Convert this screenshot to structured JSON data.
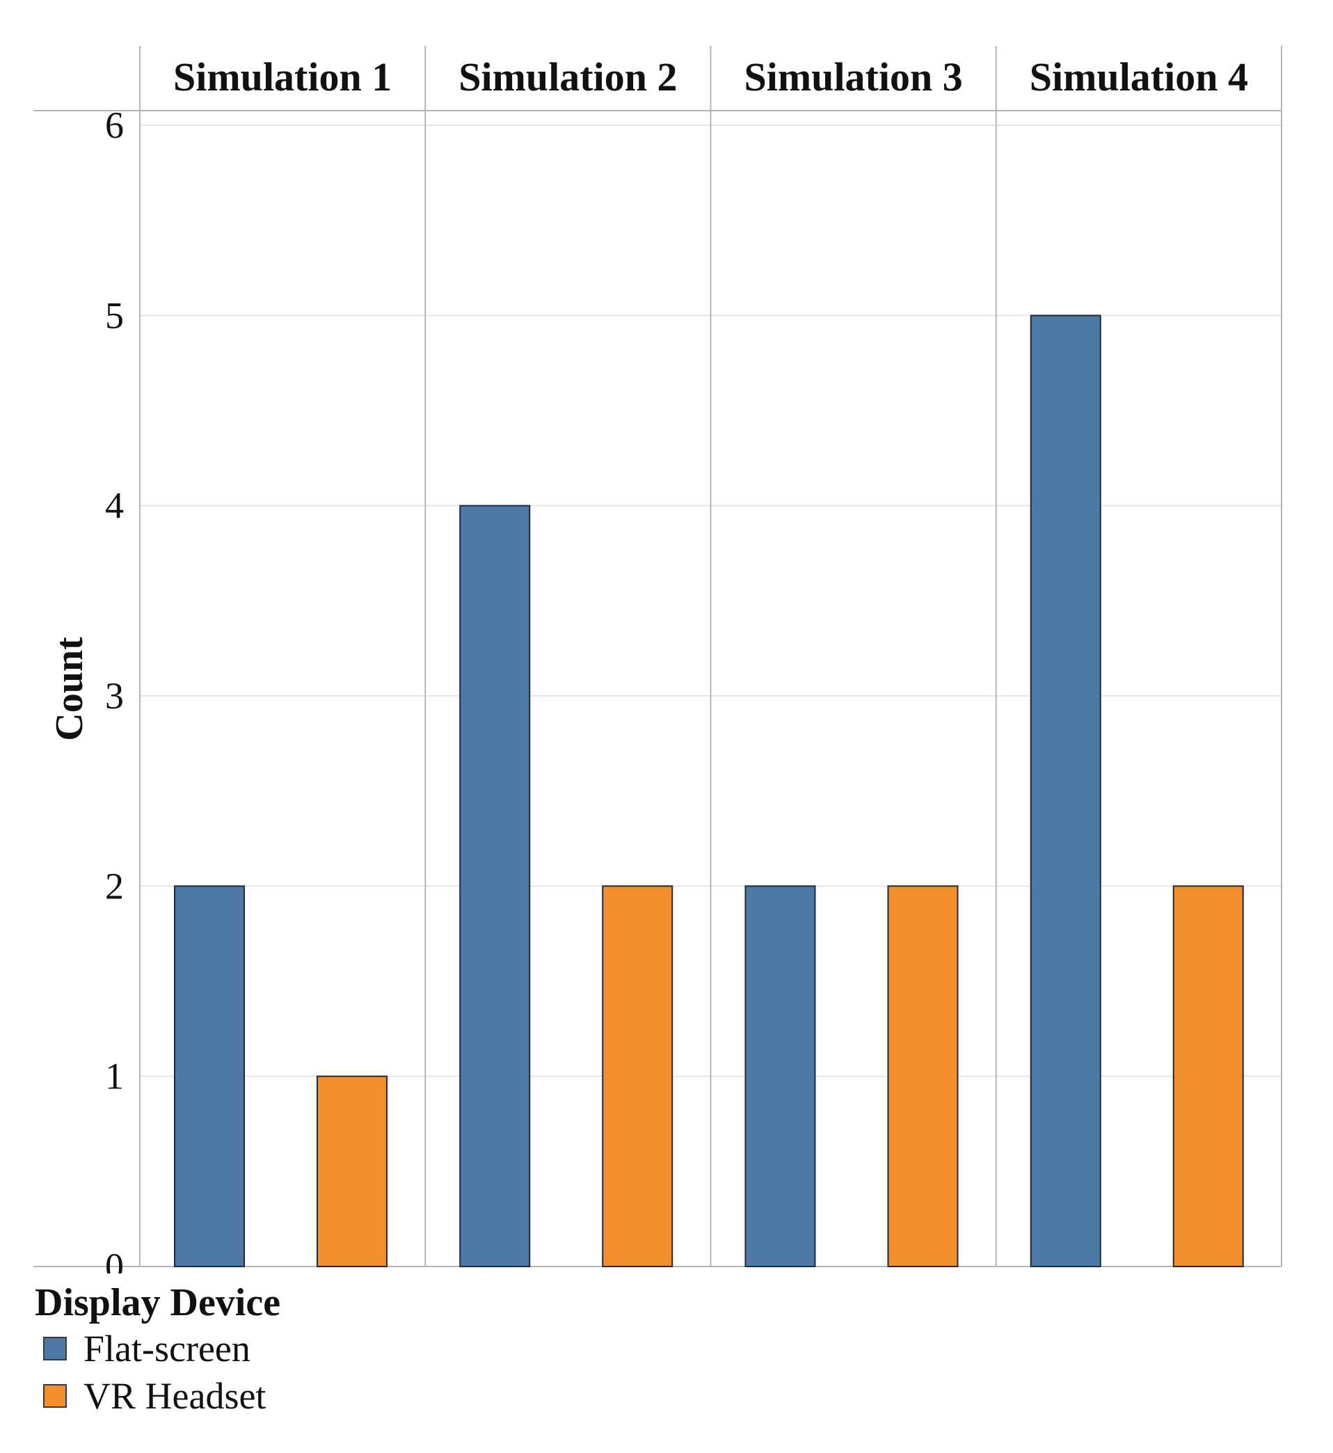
{
  "chart_data": {
    "type": "bar",
    "panels": [
      "Simulation 1",
      "Simulation 2",
      "Simulation 3",
      "Simulation 4"
    ],
    "series": [
      {
        "name": "Flat-screen",
        "color": "#4e79a7",
        "values": [
          2,
          4,
          2,
          5
        ]
      },
      {
        "name": "VR Headset",
        "color": "#f28e2b",
        "values": [
          1,
          2,
          2,
          2
        ]
      }
    ],
    "ylabel": "Count",
    "ylim": [
      0,
      6
    ],
    "yticks": [
      "0",
      "1",
      "2",
      "3",
      "4",
      "5",
      "6"
    ],
    "grid": true,
    "legend": {
      "title": "Display Device",
      "placement": "bottom-left"
    }
  }
}
